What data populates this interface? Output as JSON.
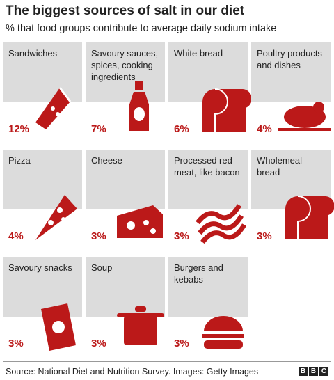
{
  "header": {
    "title": "The biggest sources of salt in our diet",
    "subtitle": "% that food groups contribute to average daily sodium intake"
  },
  "tiles": [
    {
      "label": "Sandwiches",
      "value": "12%"
    },
    {
      "label": "Savoury sauces, spices, cooking ingredients",
      "value": "7%"
    },
    {
      "label": "White bread",
      "value": "6%"
    },
    {
      "label": "Poultry products and dishes",
      "value": "4%"
    },
    {
      "label": "Pizza",
      "value": "4%"
    },
    {
      "label": "Cheese",
      "value": "3%"
    },
    {
      "label": "Processed red meat, like bacon",
      "value": "3%"
    },
    {
      "label": "Wholemeal bread",
      "value": "3%"
    },
    {
      "label": "Savoury snacks",
      "value": "3%"
    },
    {
      "label": "Soup",
      "value": "3%"
    },
    {
      "label": "Burgers and kebabs",
      "value": "3%"
    }
  ],
  "footer": {
    "source": "Source: National Diet and Nutrition Survey. Images: Getty Images",
    "logo": "BBC"
  }
}
